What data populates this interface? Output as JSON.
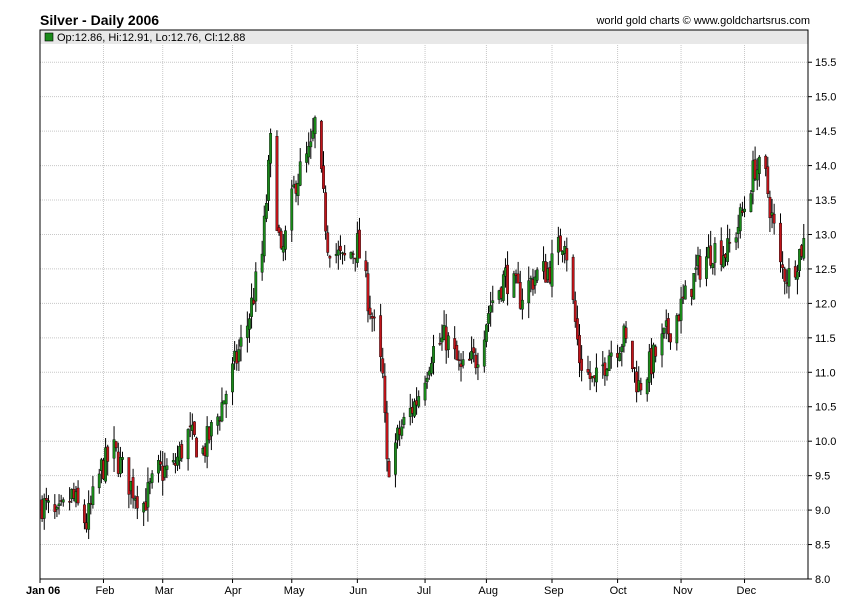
{
  "header": {
    "title": "Silver - Daily 2006",
    "credit": "world gold charts © www.goldchartsrus.com"
  },
  "legend": {
    "text": "Op:12.86, Hi:12.91, Lo:12.76, Cl:12.88",
    "swatch_color": "#1a8a1a"
  },
  "colors": {
    "up": "#1a8a1a",
    "down": "#c0141a",
    "wick": "#000000",
    "grid": "#c8c8c8",
    "legend_bg": "#e8e8e8"
  },
  "chart_data": {
    "type": "candlestick",
    "x_tick_labels": [
      "Jan 06",
      "Feb",
      "Mar",
      "Apr",
      "May",
      "Jun",
      "Jul",
      "Aug",
      "Sep",
      "Oct",
      "Nov",
      "Dec"
    ],
    "y_ticks": [
      8.0,
      8.5,
      9.0,
      9.5,
      10.0,
      10.5,
      11.0,
      11.5,
      12.0,
      12.5,
      13.0,
      13.5,
      14.0,
      14.5,
      15.0,
      15.5
    ],
    "ylim": [
      8.0,
      15.75
    ],
    "grid": true,
    "series_close": [
      [
        "2006-01-03",
        9.1
      ],
      [
        "2006-01-10",
        8.85
      ],
      [
        "2006-01-17",
        9.2
      ],
      [
        "2006-01-24",
        8.8
      ],
      [
        "2006-01-31",
        9.6
      ],
      [
        "2006-02-06",
        9.85
      ],
      [
        "2006-02-13",
        9.4
      ],
      [
        "2006-02-20",
        9.1
      ],
      [
        "2006-02-27",
        9.55
      ],
      [
        "2006-03-06",
        9.6
      ],
      [
        "2006-03-13",
        10.1
      ],
      [
        "2006-03-20",
        9.85
      ],
      [
        "2006-03-27",
        10.35
      ],
      [
        "2006-04-03",
        11.0
      ],
      [
        "2006-04-10",
        11.7
      ],
      [
        "2006-04-17",
        12.7
      ],
      [
        "2006-04-21",
        14.3
      ],
      [
        "2006-04-26",
        12.6
      ],
      [
        "2006-05-03",
        13.8
      ],
      [
        "2006-05-10",
        14.2
      ],
      [
        "2006-05-12",
        14.6
      ],
      [
        "2006-05-18",
        12.9
      ],
      [
        "2006-05-25",
        12.6
      ],
      [
        "2006-06-01",
        12.85
      ],
      [
        "2006-06-08",
        11.8
      ],
      [
        "2006-06-13",
        10.9
      ],
      [
        "2006-06-15",
        9.6
      ],
      [
        "2006-06-22",
        10.2
      ],
      [
        "2006-06-29",
        10.6
      ],
      [
        "2006-07-06",
        11.3
      ],
      [
        "2006-07-13",
        11.5
      ],
      [
        "2006-07-20",
        11.0
      ],
      [
        "2006-07-27",
        11.2
      ],
      [
        "2006-08-03",
        12.0
      ],
      [
        "2006-08-10",
        12.4
      ],
      [
        "2006-08-17",
        12.1
      ],
      [
        "2006-08-24",
        12.4
      ],
      [
        "2006-08-31",
        12.5
      ],
      [
        "2006-09-07",
        13.0
      ],
      [
        "2006-09-14",
        11.2
      ],
      [
        "2006-09-21",
        10.8
      ],
      [
        "2006-09-28",
        11.3
      ],
      [
        "2006-10-05",
        11.5
      ],
      [
        "2006-10-12",
        10.8
      ],
      [
        "2006-10-19",
        11.2
      ],
      [
        "2006-10-26",
        11.6
      ],
      [
        "2006-11-02",
        12.0
      ],
      [
        "2006-11-09",
        12.5
      ],
      [
        "2006-11-16",
        12.8
      ],
      [
        "2006-11-23",
        12.75
      ],
      [
        "2006-11-30",
        13.3
      ],
      [
        "2006-12-06",
        14.0
      ],
      [
        "2006-12-11",
        13.8
      ],
      [
        "2006-12-18",
        12.5
      ],
      [
        "2006-12-22",
        12.4
      ],
      [
        "2006-12-29",
        12.88
      ]
    ]
  }
}
